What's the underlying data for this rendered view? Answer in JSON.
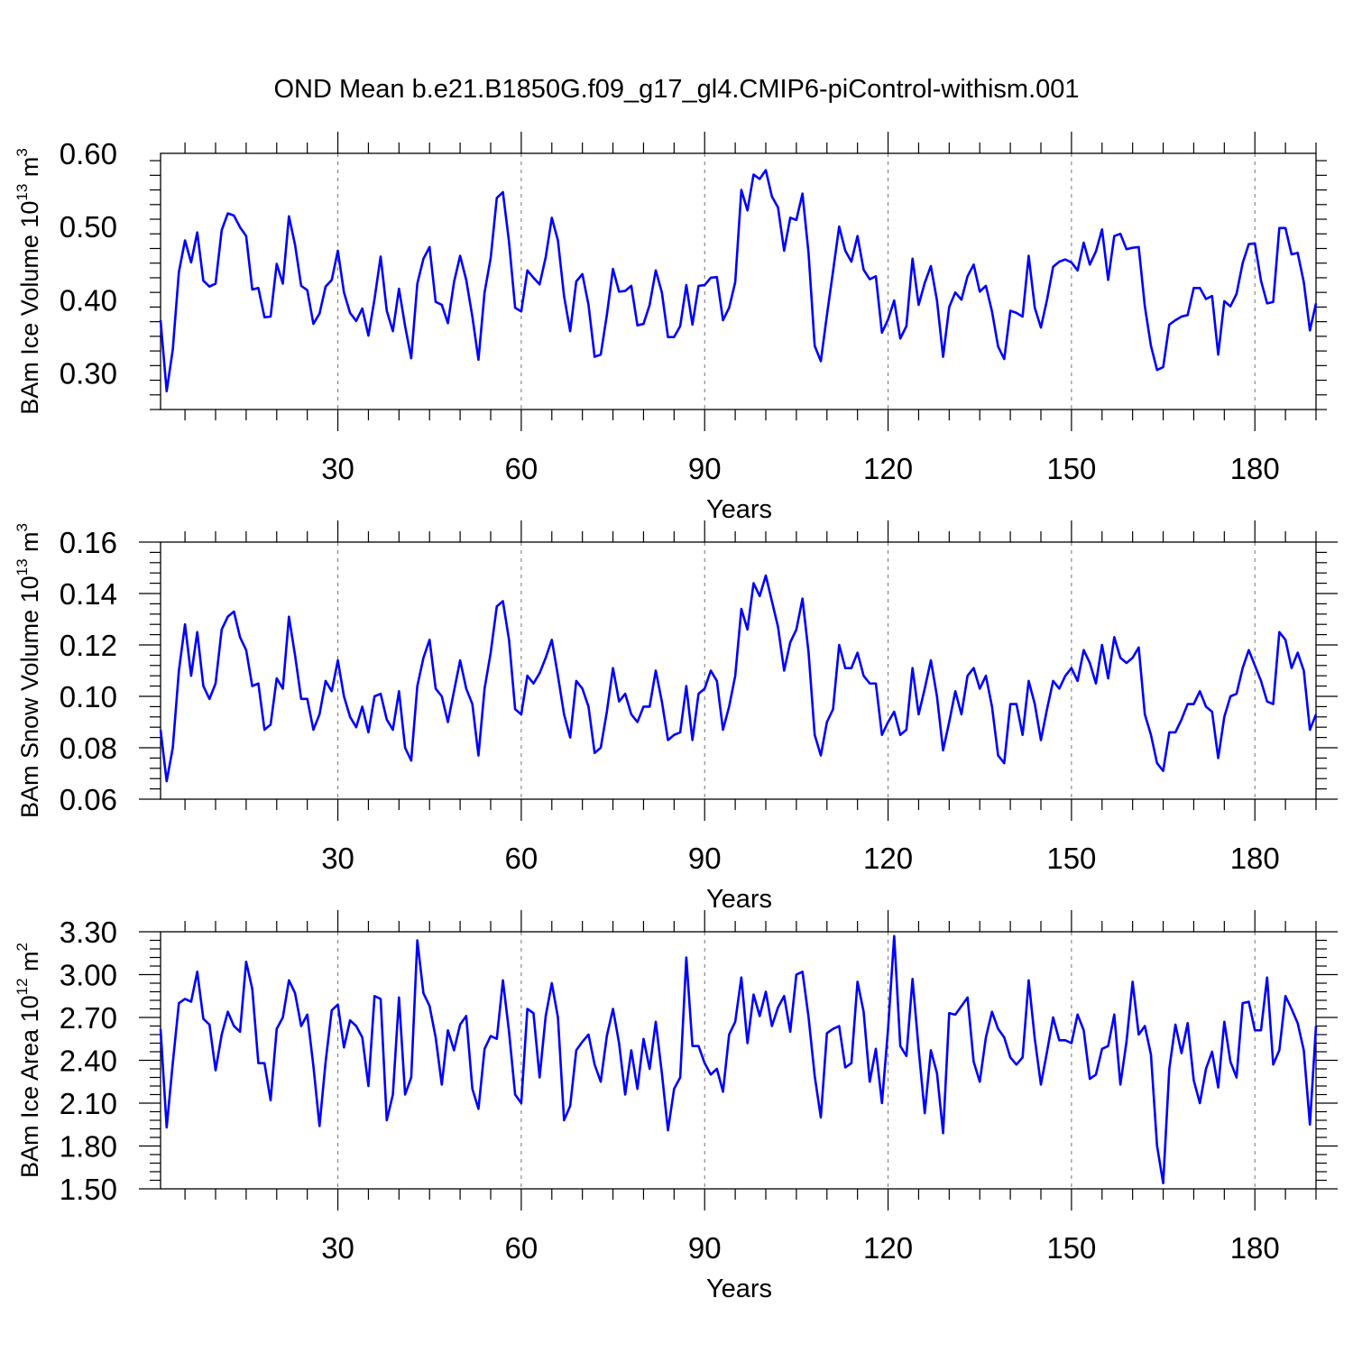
{
  "chart_data": {
    "title": "OND Mean b.e21.B1850G.f09_g17_gl4.CMIP6-piControl-withism.001",
    "line_color": "#0000ff",
    "panels": [
      {
        "type": "line",
        "xlabel": "Years",
        "ylabel": "BAm Ice Volume 10",
        "ylabel_exp": "13",
        "ylabel_unit": " m",
        "ylabel_unit_exp": "3",
        "xlim": [
          1,
          190
        ],
        "ylim": [
          0.25,
          0.6
        ],
        "xticks": [
          30,
          60,
          90,
          120,
          150,
          180
        ],
        "yticks": [
          0.3,
          0.4,
          0.5,
          0.6
        ],
        "ytick_labels": [
          "0.30",
          "0.40",
          "0.50",
          "0.60"
        ],
        "values": [
          0.372,
          0.275,
          0.332,
          0.438,
          0.481,
          0.451,
          0.492,
          0.426,
          0.418,
          0.422,
          0.495,
          0.518,
          0.515,
          0.499,
          0.487,
          0.414,
          0.416,
          0.376,
          0.377,
          0.449,
          0.422,
          0.514,
          0.475,
          0.419,
          0.413,
          0.367,
          0.381,
          0.418,
          0.427,
          0.467,
          0.41,
          0.382,
          0.371,
          0.388,
          0.351,
          0.401,
          0.459,
          0.385,
          0.357,
          0.415,
          0.364,
          0.32,
          0.422,
          0.456,
          0.472,
          0.397,
          0.393,
          0.368,
          0.424,
          0.46,
          0.427,
          0.377,
          0.318,
          0.41,
          0.457,
          0.539,
          0.547,
          0.479,
          0.389,
          0.384,
          0.44,
          0.43,
          0.421,
          0.458,
          0.512,
          0.481,
          0.405,
          0.357,
          0.425,
          0.435,
          0.393,
          0.322,
          0.325,
          0.379,
          0.442,
          0.411,
          0.412,
          0.419,
          0.365,
          0.367,
          0.393,
          0.44,
          0.41,
          0.349,
          0.349,
          0.364,
          0.42,
          0.366,
          0.419,
          0.42,
          0.43,
          0.431,
          0.372,
          0.389,
          0.424,
          0.55,
          0.522,
          0.571,
          0.565,
          0.577,
          0.541,
          0.526,
          0.467,
          0.512,
          0.509,
          0.545,
          0.463,
          0.337,
          0.316,
          0.379,
          0.439,
          0.5,
          0.467,
          0.452,
          0.487,
          0.441,
          0.428,
          0.432,
          0.355,
          0.373,
          0.399,
          0.347,
          0.364,
          0.456,
          0.393,
          0.423,
          0.446,
          0.399,
          0.322,
          0.39,
          0.41,
          0.4,
          0.432,
          0.448,
          0.411,
          0.419,
          0.384,
          0.336,
          0.319,
          0.385,
          0.382,
          0.377,
          0.46,
          0.389,
          0.362,
          0.4,
          0.445,
          0.452,
          0.455,
          0.451,
          0.44,
          0.478,
          0.448,
          0.466,
          0.496,
          0.427,
          0.487,
          0.49,
          0.469,
          0.471,
          0.472,
          0.391,
          0.337,
          0.304,
          0.308,
          0.366,
          0.372,
          0.377,
          0.379,
          0.416,
          0.416,
          0.401,
          0.405,
          0.325,
          0.398,
          0.391,
          0.408,
          0.45,
          0.476,
          0.477,
          0.426,
          0.395,
          0.397,
          0.498,
          0.498,
          0.462,
          0.464,
          0.424,
          0.358,
          0.395
        ]
      },
      {
        "type": "line",
        "xlabel": "Years",
        "ylabel": "BAm Snow Volume 10",
        "ylabel_exp": "13",
        "ylabel_unit": " m",
        "ylabel_unit_exp": "3",
        "xlim": [
          1,
          190
        ],
        "ylim": [
          0.06,
          0.16
        ],
        "xticks": [
          30,
          60,
          90,
          120,
          150,
          180
        ],
        "yticks": [
          0.06,
          0.08,
          0.1,
          0.12,
          0.14,
          0.16
        ],
        "ytick_labels": [
          "0.06",
          "0.08",
          "0.10",
          "0.12",
          "0.14",
          "0.16"
        ],
        "values": [
          0.087,
          0.067,
          0.08,
          0.11,
          0.128,
          0.108,
          0.125,
          0.104,
          0.099,
          0.105,
          0.126,
          0.131,
          0.133,
          0.123,
          0.118,
          0.104,
          0.105,
          0.087,
          0.089,
          0.107,
          0.103,
          0.131,
          0.116,
          0.099,
          0.099,
          0.087,
          0.093,
          0.106,
          0.102,
          0.114,
          0.1,
          0.092,
          0.088,
          0.096,
          0.086,
          0.1,
          0.101,
          0.091,
          0.087,
          0.102,
          0.08,
          0.075,
          0.104,
          0.115,
          0.122,
          0.103,
          0.1,
          0.09,
          0.102,
          0.114,
          0.103,
          0.097,
          0.077,
          0.103,
          0.117,
          0.135,
          0.137,
          0.122,
          0.095,
          0.093,
          0.108,
          0.105,
          0.109,
          0.115,
          0.122,
          0.108,
          0.093,
          0.084,
          0.106,
          0.103,
          0.096,
          0.078,
          0.08,
          0.094,
          0.111,
          0.098,
          0.101,
          0.093,
          0.09,
          0.096,
          0.096,
          0.11,
          0.098,
          0.083,
          0.085,
          0.086,
          0.104,
          0.083,
          0.101,
          0.103,
          0.11,
          0.106,
          0.087,
          0.096,
          0.108,
          0.134,
          0.126,
          0.144,
          0.139,
          0.147,
          0.137,
          0.127,
          0.11,
          0.121,
          0.126,
          0.138,
          0.117,
          0.085,
          0.077,
          0.09,
          0.095,
          0.12,
          0.111,
          0.111,
          0.117,
          0.108,
          0.105,
          0.105,
          0.085,
          0.09,
          0.094,
          0.085,
          0.087,
          0.111,
          0.093,
          0.103,
          0.114,
          0.1,
          0.079,
          0.09,
          0.102,
          0.093,
          0.108,
          0.111,
          0.103,
          0.108,
          0.096,
          0.077,
          0.074,
          0.097,
          0.097,
          0.085,
          0.106,
          0.097,
          0.083,
          0.095,
          0.106,
          0.103,
          0.108,
          0.111,
          0.106,
          0.118,
          0.113,
          0.105,
          0.12,
          0.107,
          0.123,
          0.115,
          0.113,
          0.115,
          0.119,
          0.093,
          0.085,
          0.074,
          0.071,
          0.086,
          0.086,
          0.091,
          0.097,
          0.097,
          0.102,
          0.096,
          0.094,
          0.076,
          0.092,
          0.1,
          0.101,
          0.111,
          0.118,
          0.112,
          0.106,
          0.098,
          0.097,
          0.125,
          0.122,
          0.111,
          0.117,
          0.11,
          0.087,
          0.093
        ]
      },
      {
        "type": "line",
        "xlabel": "Years",
        "ylabel": "BAm Ice Area 10",
        "ylabel_exp": "12",
        "ylabel_unit": " m",
        "ylabel_unit_exp": "2",
        "xlim": [
          1,
          190
        ],
        "ylim": [
          1.5,
          3.3
        ],
        "xticks": [
          30,
          60,
          90,
          120,
          150,
          180
        ],
        "yticks": [
          1.5,
          1.8,
          2.1,
          2.4,
          2.7,
          3.0,
          3.3
        ],
        "ytick_labels": [
          "1.50",
          "1.80",
          "2.10",
          "2.40",
          "2.70",
          "3.00",
          "3.30"
        ],
        "values": [
          2.62,
          1.93,
          2.38,
          2.8,
          2.83,
          2.81,
          3.02,
          2.69,
          2.65,
          2.33,
          2.58,
          2.74,
          2.64,
          2.6,
          3.09,
          2.9,
          2.38,
          2.38,
          2.12,
          2.62,
          2.7,
          2.96,
          2.87,
          2.64,
          2.72,
          2.36,
          1.94,
          2.39,
          2.75,
          2.79,
          2.49,
          2.68,
          2.64,
          2.56,
          2.22,
          2.85,
          2.83,
          1.98,
          2.16,
          2.84,
          2.16,
          2.28,
          3.24,
          2.87,
          2.78,
          2.56,
          2.23,
          2.61,
          2.47,
          2.65,
          2.71,
          2.2,
          2.06,
          2.48,
          2.57,
          2.55,
          2.96,
          2.6,
          2.16,
          2.1,
          2.76,
          2.73,
          2.28,
          2.71,
          2.94,
          2.7,
          1.98,
          2.08,
          2.47,
          2.53,
          2.58,
          2.37,
          2.25,
          2.57,
          2.76,
          2.52,
          2.16,
          2.47,
          2.2,
          2.55,
          2.34,
          2.67,
          2.31,
          1.91,
          2.2,
          2.28,
          3.12,
          2.5,
          2.5,
          2.38,
          2.3,
          2.34,
          2.18,
          2.58,
          2.67,
          2.98,
          2.52,
          2.86,
          2.71,
          2.88,
          2.64,
          2.77,
          2.85,
          2.6,
          3.0,
          3.02,
          2.7,
          2.29,
          2.0,
          2.59,
          2.62,
          2.64,
          2.35,
          2.38,
          2.95,
          2.74,
          2.25,
          2.48,
          2.1,
          2.62,
          3.27,
          2.5,
          2.43,
          2.97,
          2.48,
          2.03,
          2.47,
          2.31,
          1.89,
          2.73,
          2.72,
          2.78,
          2.84,
          2.39,
          2.25,
          2.56,
          2.74,
          2.62,
          2.56,
          2.42,
          2.37,
          2.42,
          2.96,
          2.55,
          2.23,
          2.46,
          2.7,
          2.54,
          2.54,
          2.52,
          2.72,
          2.61,
          2.27,
          2.3,
          2.48,
          2.5,
          2.72,
          2.23,
          2.53,
          2.95,
          2.58,
          2.64,
          2.44,
          1.8,
          1.54,
          2.34,
          2.65,
          2.45,
          2.66,
          2.26,
          2.1,
          2.34,
          2.46,
          2.21,
          2.67,
          2.39,
          2.28,
          2.8,
          2.81,
          2.61,
          2.61,
          2.98,
          2.37,
          2.47,
          2.85,
          2.76,
          2.66,
          2.47,
          1.95,
          2.64
        ]
      }
    ]
  }
}
